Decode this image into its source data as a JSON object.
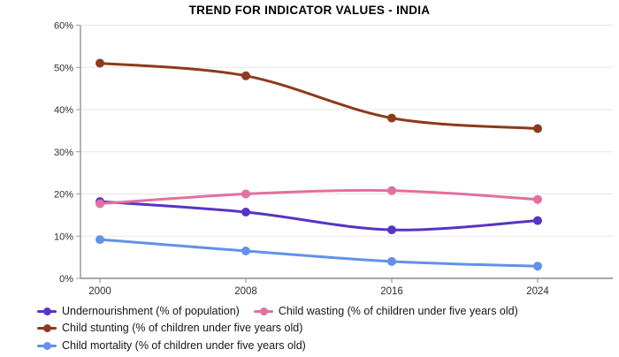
{
  "chart_data": {
    "type": "line",
    "title": "TREND FOR INDICATOR VALUES - INDIA",
    "x": [
      "2000",
      "2008",
      "2016",
      "2024"
    ],
    "series": [
      {
        "name": "Undernourishment (% of population)",
        "color": "#5833c4",
        "values": [
          18.2,
          15.7,
          11.5,
          13.7
        ]
      },
      {
        "name": "Child wasting (% of children under five years old)",
        "color": "#e0709f",
        "values": [
          17.7,
          20.0,
          20.8,
          18.7
        ]
      },
      {
        "name": "Child stunting (% of children under five years old)",
        "color": "#8c3a1d",
        "values": [
          51.0,
          48.0,
          38.0,
          35.5
        ]
      },
      {
        "name": "Child mortality (% of children under five years old)",
        "color": "#6191e8",
        "values": [
          9.2,
          6.5,
          4.0,
          2.9
        ]
      }
    ],
    "ylim": [
      0,
      60
    ],
    "y_tick_step": 10,
    "y_tick_labels": [
      "0%",
      "10%",
      "20%",
      "30%",
      "40%",
      "50%",
      "60%"
    ],
    "xlabel": "",
    "ylabel": "",
    "grid": true,
    "legend_position": "bottom-left",
    "colors": {
      "gridline": "#e7e7e7",
      "axis_line": "#9b9b9b",
      "bottom_axis_line": "#8a8a8a",
      "tick_label": "#2e2e2e",
      "title": "#000000",
      "background": "#ffffff"
    }
  }
}
